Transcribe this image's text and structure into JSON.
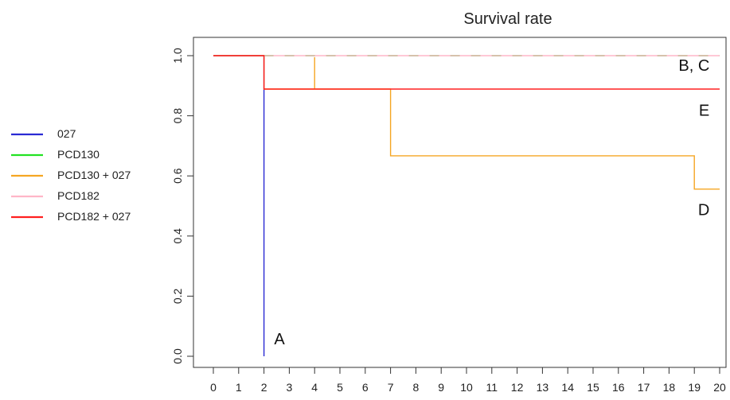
{
  "chart_data": {
    "type": "line",
    "title": "Survival rate",
    "xlabel": "",
    "ylabel": "",
    "xlim": [
      0,
      20
    ],
    "ylim": [
      0,
      1
    ],
    "x_ticks": [
      "0",
      "1",
      "2",
      "3",
      "4",
      "5",
      "6",
      "7",
      "8",
      "9",
      "10",
      "11",
      "12",
      "13",
      "14",
      "15",
      "16",
      "17",
      "18",
      "19",
      "20"
    ],
    "y_ticks": [
      "0.0",
      "0.2",
      "0.4",
      "0.6",
      "0.8",
      "1.0"
    ],
    "grid": false,
    "legend_position": "left",
    "series": [
      {
        "name": "027",
        "color": "#2a2ad4",
        "style": "solid",
        "points": [
          [
            0,
            1.0
          ],
          [
            2,
            1.0
          ],
          [
            2,
            0.0
          ]
        ]
      },
      {
        "name": "PCD130",
        "color": "#22e222",
        "style": "dashed",
        "points": [
          [
            2,
            1.0
          ],
          [
            20,
            1.0
          ]
        ]
      },
      {
        "name": "PCD130 + 027",
        "color": "#f5a623",
        "style": "solid",
        "points": [
          [
            0,
            1.0
          ],
          [
            2,
            1.0
          ],
          [
            2,
            0.889
          ],
          [
            4,
            0.889
          ],
          [
            4,
            0.995
          ],
          [
            4,
            0.889
          ],
          [
            7,
            0.889
          ],
          [
            7,
            0.667
          ],
          [
            19,
            0.667
          ],
          [
            19,
            0.556
          ],
          [
            20,
            0.556
          ]
        ]
      },
      {
        "name": "PCD182",
        "color": "#ffb6c8",
        "style": "solid",
        "points": [
          [
            2,
            1.0
          ],
          [
            20,
            1.0
          ]
        ]
      },
      {
        "name": "PCD182 + 027",
        "color": "#ff2020",
        "style": "solid",
        "points": [
          [
            0,
            1.0
          ],
          [
            2,
            1.0
          ],
          [
            2,
            0.889
          ],
          [
            20,
            0.889
          ]
        ]
      }
    ],
    "annotations": [
      {
        "text": "A",
        "x": 2.4,
        "y": 0.04
      },
      {
        "text": "B, C",
        "x": 19.6,
        "y": 0.95
      },
      {
        "text": "E",
        "x": 19.6,
        "y": 0.8
      },
      {
        "text": "D",
        "x": 19.6,
        "y": 0.47
      }
    ]
  }
}
